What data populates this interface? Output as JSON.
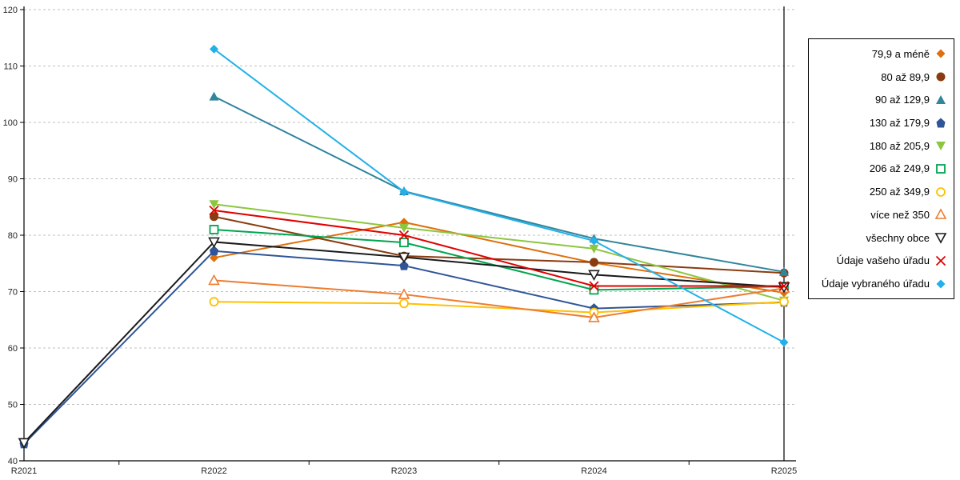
{
  "chart_data": {
    "type": "line",
    "title": "",
    "xlabel": "",
    "ylabel": "",
    "categories": [
      "R2021",
      "R2022",
      "R2023",
      "R2024",
      "R2025"
    ],
    "ylim": [
      40,
      120
    ],
    "y_ticks": [
      40,
      50,
      60,
      70,
      80,
      90,
      100,
      110,
      120
    ],
    "grid": "horizontal-dashed",
    "legend_position": "right",
    "right_boundary_line_at": "R2025",
    "series": [
      {
        "name": "79,9 a méně",
        "color": "#DE6F0C",
        "marker": "diamond-filled",
        "values": [
          null,
          76,
          82.3,
          75.1,
          69.8
        ]
      },
      {
        "name": "80 až 89,9",
        "color": "#8A3B10",
        "marker": "circle-filled",
        "values": [
          null,
          83.3,
          76.3,
          75.2,
          73.3
        ]
      },
      {
        "name": "90 až 129,9",
        "color": "#31859C",
        "marker": "triangle-up-filled",
        "values": [
          null,
          104.6,
          87.8,
          79.4,
          73.5
        ]
      },
      {
        "name": "130 až 179,9",
        "color": "#2F5597",
        "marker": "pentagon-filled",
        "values": [
          43,
          77.2,
          74.6,
          67,
          68.1
        ]
      },
      {
        "name": "180 až 205,9",
        "color": "#8CC63F",
        "marker": "triangle-down-filled",
        "values": [
          null,
          85.5,
          81.3,
          77.6,
          68.4
        ]
      },
      {
        "name": "206 až 249,9",
        "color": "#00A550",
        "marker": "square-open",
        "values": [
          null,
          81,
          78.7,
          70.3,
          70.9
        ]
      },
      {
        "name": "250 až 349,9",
        "color": "#FFC000",
        "marker": "circle-open",
        "values": [
          null,
          68.2,
          67.9,
          66.3,
          68.2
        ]
      },
      {
        "name": "více než 350",
        "color": "#ED7D31",
        "marker": "triangle-up-open",
        "values": [
          null,
          72,
          69.5,
          65.4,
          70.6
        ]
      },
      {
        "name": "všechny obce",
        "color": "#1A1A1A",
        "marker": "triangle-down-open",
        "values": [
          43.2,
          78.8,
          76.1,
          73,
          70.8
        ]
      },
      {
        "name": "Údaje vašeho úřadu",
        "color": "#E00000",
        "marker": "x-cross",
        "values": [
          null,
          84.4,
          80,
          71,
          71
        ]
      },
      {
        "name": "Údaje vybraného úřadu",
        "color": "#23B0EA",
        "marker": "diamond-filled",
        "values": [
          null,
          113,
          87.7,
          79,
          61
        ]
      }
    ]
  }
}
